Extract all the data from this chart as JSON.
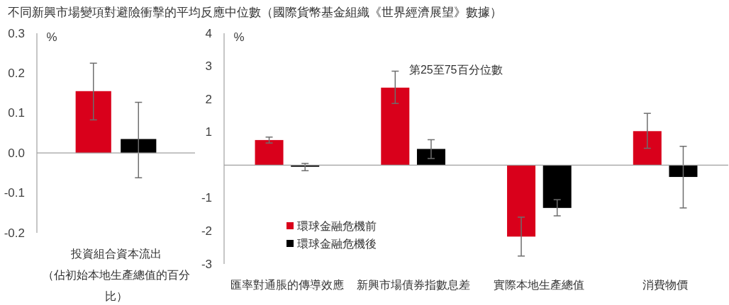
{
  "chart_data": [
    {
      "type": "bar",
      "title": "不同新興市場變項對避險衝擊的平均反應中位數（國際貨幣基金組織《世界經濟展望》數據）",
      "ylabel": "%",
      "categories": [
        "投資組合資本流出（佔初始本地生產總值的百分比）"
      ],
      "ylim": [
        -0.2,
        0.3
      ],
      "yticks": [
        0.3,
        0.2,
        0.1,
        {
          "value": 0,
          "label": "0.0"
        },
        -0.1,
        -0.2
      ],
      "series": [
        {
          "color": "#d9001b",
          "values": [
            0.155
          ],
          "errors": [
            [
              0.083,
              0.225
            ]
          ]
        },
        {
          "color": "#000000",
          "values": [
            0.035
          ],
          "errors": [
            [
              -0.062,
              0.127
            ]
          ]
        }
      ]
    },
    {
      "type": "bar",
      "ylabel": "%",
      "categories": [
        "匯率對通脹的傳導效應",
        "新興市場債券指數息差",
        "實際本地生產總值",
        "消費物價"
      ],
      "ylim": [
        -3,
        4
      ],
      "yticks": [
        4,
        3,
        2,
        1,
        -1,
        -2,
        -3
      ],
      "series": [
        {
          "name": "環球金融危機前",
          "color": "#d9001b",
          "values": [
            0.76,
            2.35,
            -2.17,
            1.03
          ],
          "errors": [
            [
              0.67,
              0.85
            ],
            [
              1.87,
              2.85
            ],
            [
              -2.76,
              -1.58
            ],
            [
              0.51,
              1.57
            ]
          ]
        },
        {
          "name": "環球金融危機後",
          "color": "#000000",
          "values": [
            -0.05,
            0.49,
            -1.3,
            -0.36
          ],
          "errors": [
            [
              -0.17,
              0.05
            ],
            [
              0.2,
              0.77
            ],
            [
              -1.54,
              -1.05
            ],
            [
              -1.3,
              0.57
            ]
          ]
        }
      ],
      "legend": "bottom left",
      "annotations": [
        "第25至75百分位數"
      ]
    }
  ]
}
